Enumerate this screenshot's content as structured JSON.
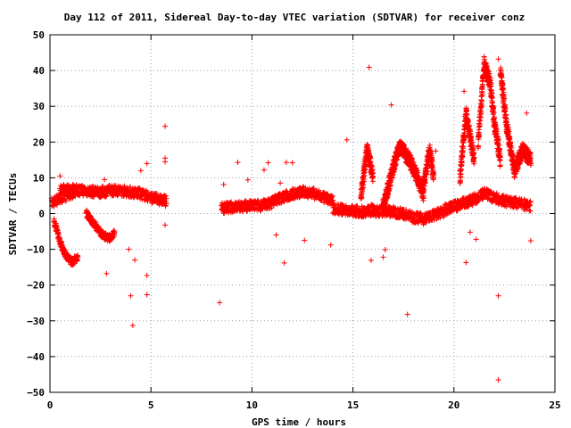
{
  "chart_data": {
    "type": "scatter",
    "title": "Day 112 of 2011, Sidereal Day-to-day VTEC variation (SDTVAR) for receiver conz",
    "xlabel": "GPS time / hours",
    "ylabel": "SDTVAR / TECUs",
    "xlim": [
      0,
      25
    ],
    "ylim": [
      -50,
      50
    ],
    "x_ticks": [
      0,
      5,
      10,
      15,
      20,
      25
    ],
    "y_ticks": [
      -50,
      -40,
      -30,
      -20,
      -10,
      0,
      10,
      20,
      30,
      40,
      50
    ],
    "x_tick_labels": [
      "0",
      "5",
      "10",
      "15",
      "20",
      "25"
    ],
    "y_tick_labels": [
      "−50",
      "−40",
      "−30",
      "−20",
      "−10",
      "0",
      "10",
      "20",
      "30",
      "40",
      "50"
    ],
    "grid": true,
    "marker": "+",
    "color": "#ff0000",
    "band_segments": [
      [
        0.1,
        1.3,
        [
          [
            0.1,
            3
          ],
          [
            0.4,
            4
          ],
          [
            0.8,
            5
          ],
          [
            1.2,
            6
          ],
          [
            1.3,
            6
          ]
        ]
      ],
      [
        0.5,
        3.0,
        [
          [
            0.5,
            6.5
          ],
          [
            1.0,
            6.8
          ],
          [
            1.5,
            6.5
          ],
          [
            2.0,
            6.2
          ],
          [
            2.5,
            6.0
          ],
          [
            3.0,
            6.5
          ]
        ]
      ],
      [
        3.0,
        5.8,
        [
          [
            3.0,
            6.5
          ],
          [
            3.5,
            6.4
          ],
          [
            4.0,
            6.0
          ],
          [
            4.5,
            5.5
          ],
          [
            5.0,
            4.5
          ],
          [
            5.5,
            3.8
          ],
          [
            5.8,
            3.5
          ]
        ]
      ],
      [
        8.5,
        11.0,
        [
          [
            8.5,
            1.5
          ],
          [
            9.0,
            1.8
          ],
          [
            9.5,
            2.0
          ],
          [
            10.0,
            2.2
          ],
          [
            10.5,
            2.3
          ],
          [
            11.0,
            3.0
          ]
        ]
      ],
      [
        11.0,
        14.0,
        [
          [
            11.0,
            3.5
          ],
          [
            11.5,
            4.5
          ],
          [
            12.0,
            5.5
          ],
          [
            12.5,
            6.0
          ],
          [
            13.0,
            5.8
          ],
          [
            13.5,
            4.5
          ],
          [
            14.0,
            3.5
          ]
        ]
      ],
      [
        14.0,
        16.0,
        [
          [
            14.0,
            1.5
          ],
          [
            14.5,
            1.0
          ],
          [
            15.0,
            0.8
          ],
          [
            15.5,
            0.5
          ],
          [
            16.0,
            1.0
          ]
        ]
      ],
      [
        16.0,
        19.5,
        [
          [
            16.0,
            0.5
          ],
          [
            16.5,
            0.8
          ],
          [
            17.0,
            0.5
          ],
          [
            17.5,
            0.0
          ],
          [
            18.0,
            -1.0
          ],
          [
            18.5,
            -1.5
          ],
          [
            19.0,
            -0.5
          ],
          [
            19.5,
            0.5
          ]
        ]
      ],
      [
        19.5,
        23.8,
        [
          [
            19.5,
            1.0
          ],
          [
            20.0,
            2.0
          ],
          [
            20.5,
            3.0
          ],
          [
            21.0,
            4.0
          ],
          [
            21.5,
            5.5
          ],
          [
            22.0,
            4.5
          ],
          [
            22.5,
            3.5
          ],
          [
            23.0,
            3.0
          ],
          [
            23.5,
            2.5
          ],
          [
            23.8,
            2.0
          ]
        ]
      ]
    ],
    "dip_segments": [
      [
        0.2,
        1.4,
        [
          [
            0.2,
            -2
          ],
          [
            0.5,
            -8
          ],
          [
            0.8,
            -12
          ],
          [
            1.1,
            -13.5
          ],
          [
            1.4,
            -12
          ]
        ]
      ],
      [
        1.8,
        3.2,
        [
          [
            1.8,
            0
          ],
          [
            2.2,
            -3
          ],
          [
            2.6,
            -6
          ],
          [
            3.0,
            -7
          ],
          [
            3.2,
            -5
          ]
        ]
      ]
    ],
    "spike_segments": [
      [
        15.4,
        16.0,
        [
          [
            15.4,
            5
          ],
          [
            15.7,
            18
          ],
          [
            16.0,
            10
          ]
        ]
      ],
      [
        16.5,
        18.5,
        [
          [
            16.5,
            2
          ],
          [
            17.0,
            13
          ],
          [
            17.3,
            19
          ],
          [
            17.8,
            15
          ],
          [
            18.2,
            10
          ],
          [
            18.5,
            5
          ]
        ]
      ],
      [
        18.5,
        19.0,
        [
          [
            18.5,
            8
          ],
          [
            18.8,
            18
          ],
          [
            19.0,
            10
          ]
        ]
      ],
      [
        20.3,
        21.0,
        [
          [
            20.3,
            10
          ],
          [
            20.6,
            28
          ],
          [
            21.0,
            15
          ]
        ]
      ],
      [
        21.2,
        22.3,
        [
          [
            21.2,
            20
          ],
          [
            21.5,
            42
          ],
          [
            21.8,
            36
          ],
          [
            22.0,
            25
          ],
          [
            22.3,
            15
          ]
        ]
      ],
      [
        22.3,
        23.0,
        [
          [
            22.3,
            40
          ],
          [
            22.6,
            25
          ],
          [
            23.0,
            12
          ]
        ]
      ],
      [
        23.0,
        23.8,
        [
          [
            23.0,
            12
          ],
          [
            23.4,
            18
          ],
          [
            23.8,
            15
          ]
        ]
      ]
    ],
    "outliers": [
      [
        0.5,
        10.5
      ],
      [
        2.8,
        -16.8
      ],
      [
        2.7,
        9.5
      ],
      [
        4.0,
        -23
      ],
      [
        4.1,
        -31.3
      ],
      [
        4.2,
        -13
      ],
      [
        4.8,
        -17.3
      ],
      [
        4.8,
        -22.7
      ],
      [
        5.7,
        24.4
      ],
      [
        5.7,
        15.5
      ],
      [
        5.7,
        14.5
      ],
      [
        5.7,
        -3.2
      ],
      [
        4.5,
        12
      ],
      [
        4.8,
        14
      ],
      [
        8.4,
        -24.9
      ],
      [
        9.3,
        14.3
      ],
      [
        10.8,
        14.2
      ],
      [
        10.6,
        12.2
      ],
      [
        11.2,
        -6
      ],
      [
        11.6,
        -13.8
      ],
      [
        11.7,
        14.3
      ],
      [
        12.0,
        14.2
      ],
      [
        14.7,
        20.6
      ],
      [
        15.8,
        40.9
      ],
      [
        15.9,
        -13.1
      ],
      [
        16.5,
        -12.2
      ],
      [
        16.6,
        -10.1
      ],
      [
        16.9,
        30.4
      ],
      [
        17.7,
        -28.2
      ],
      [
        20.6,
        -13.7
      ],
      [
        20.5,
        34.2
      ],
      [
        22.2,
        -46.5
      ],
      [
        22.2,
        -23
      ],
      [
        22.2,
        43.2
      ],
      [
        23.6,
        28.1
      ],
      [
        23.8,
        -7.6
      ],
      [
        19.1,
        17.5
      ],
      [
        20.8,
        -5.2
      ],
      [
        21.1,
        -7.2
      ],
      [
        12.6,
        -7.5
      ],
      [
        9.8,
        9.4
      ],
      [
        8.6,
        8.1
      ],
      [
        11.4,
        8.5
      ],
      [
        13.9,
        -8.8
      ],
      [
        3.9,
        -10
      ],
      [
        1.2,
        -14
      ]
    ]
  }
}
